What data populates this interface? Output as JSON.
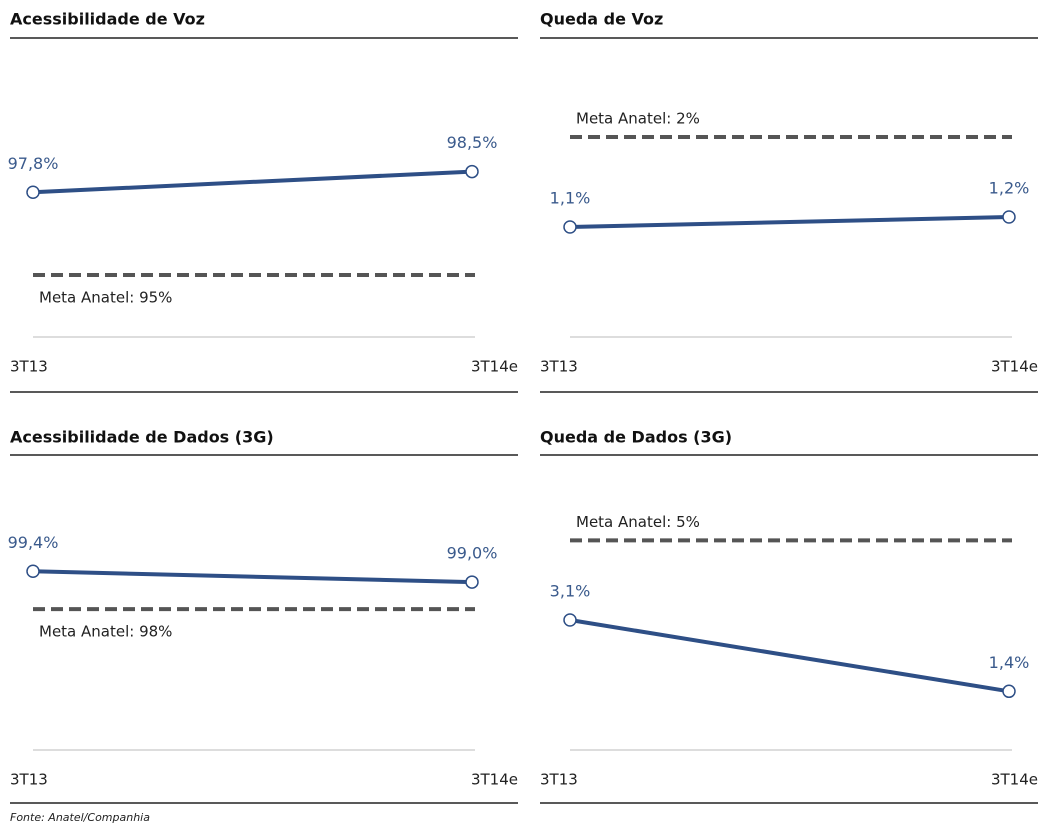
{
  "chart_data": [
    {
      "type": "line",
      "title": "Acessibilidade de Voz",
      "categories": [
        "3T13",
        "3T14e"
      ],
      "values": [
        97.8,
        98.5
      ],
      "value_labels": [
        "97,8%",
        "98,5%"
      ],
      "color": "#2e4f86",
      "ylim": [
        92.9,
        101.6
      ],
      "target": {
        "value": 95,
        "label": "Meta Anatel: 95%"
      }
    },
    {
      "type": "line",
      "title": "Queda de Voz",
      "categories": [
        "3T13",
        "3T14e"
      ],
      "values": [
        1.1,
        1.2
      ],
      "value_labels": [
        "1,1%",
        "1,2%"
      ],
      "color": "#2e4f86",
      "ylim": [
        0,
        2.57
      ],
      "target": {
        "value": 2,
        "label": "Meta Anatel: 2%"
      }
    },
    {
      "type": "line",
      "title": "Acessibilidade de Dados (3G)",
      "categories": [
        "3T13",
        "3T14e"
      ],
      "values": [
        99.4,
        99.0
      ],
      "value_labels": [
        "99,4%",
        "99,0%"
      ],
      "color": "#2e4f86",
      "ylim": [
        92.8,
        102.4
      ],
      "target": {
        "value": 98,
        "label": "Meta Anatel: 98%"
      }
    },
    {
      "type": "line",
      "title": "Queda de Dados (3G)",
      "categories": [
        "3T13",
        "3T14e"
      ],
      "values": [
        3.1,
        1.4
      ],
      "value_labels": [
        "3,1%",
        "1,4%"
      ],
      "color": "#2e4f86",
      "ylim": [
        0,
        6.2
      ],
      "target": {
        "value": 5,
        "label": "Meta Anatel: 5%"
      }
    }
  ],
  "source": "Fonte: Anatel/Companhia"
}
